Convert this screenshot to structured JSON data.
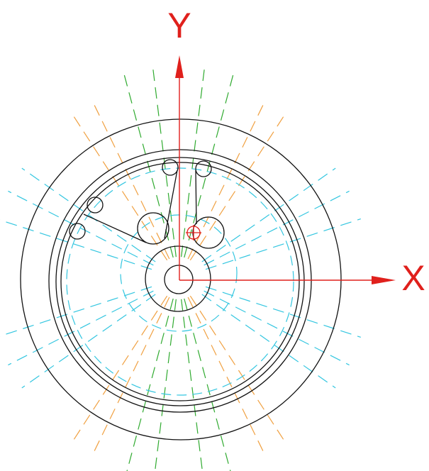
{
  "axes": {
    "y_label": "Y",
    "x_label": "X"
  }
}
